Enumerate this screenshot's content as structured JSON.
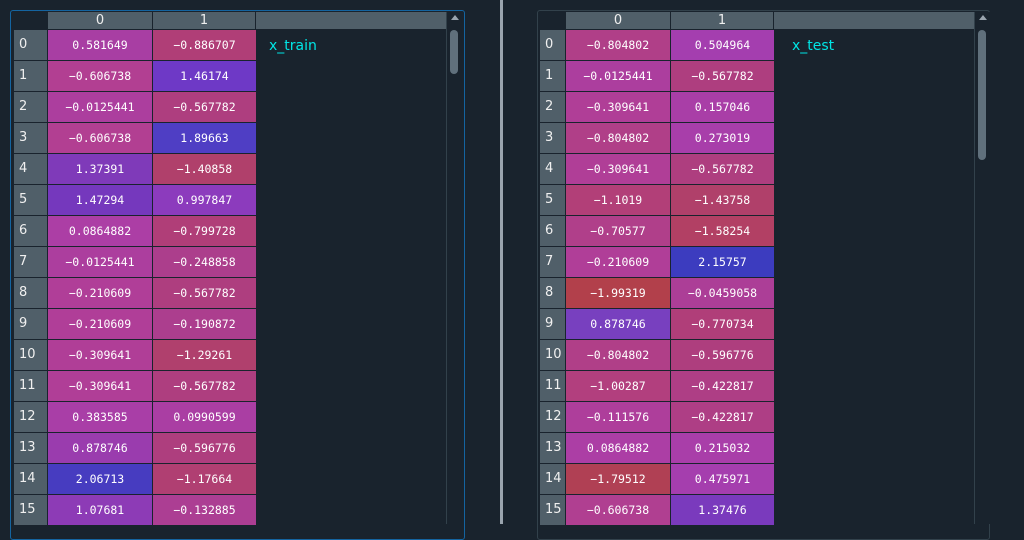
{
  "left": {
    "label": "x_train",
    "columns": [
      "0",
      "1"
    ],
    "rows": [
      {
        "index": "0",
        "c0": "0.581649",
        "c1": "−0.886707",
        "bg0": "#a83ea3",
        "bg1": "#b03e77"
      },
      {
        "index": "1",
        "c0": "−0.606738",
        "c1": "1.46174",
        "bg0": "#b23f92",
        "bg1": "#6e39c6"
      },
      {
        "index": "2",
        "c0": "−0.0125441",
        "c1": "−0.567782",
        "bg0": "#ac3e9e",
        "bg1": "#ae3e7f"
      },
      {
        "index": "3",
        "c0": "−0.606738",
        "c1": "1.89663",
        "bg0": "#b23f92",
        "bg1": "#4f3ec4"
      },
      {
        "index": "4",
        "c0": "1.37391",
        "c1": "−1.40858",
        "bg0": "#7f3ab9",
        "bg1": "#b0406b"
      },
      {
        "index": "5",
        "c0": "1.47294",
        "c1": "0.997847",
        "bg0": "#7538bd",
        "bg1": "#8c3bbd"
      },
      {
        "index": "6",
        "c0": "0.0864882",
        "c1": "−0.799728",
        "bg0": "#ac3ea5",
        "bg1": "#b03e78"
      },
      {
        "index": "7",
        "c0": "−0.0125441",
        "c1": "−0.248858",
        "bg0": "#ac3e9e",
        "bg1": "#ac3e8c"
      },
      {
        "index": "8",
        "c0": "−0.210609",
        "c1": "−0.567782",
        "bg0": "#b03e98",
        "bg1": "#ae3e7f"
      },
      {
        "index": "9",
        "c0": "−0.210609",
        "c1": "−0.190872",
        "bg0": "#b03e98",
        "bg1": "#ac3e8e"
      },
      {
        "index": "10",
        "c0": "−0.309641",
        "c1": "−1.29261",
        "bg0": "#b03e97",
        "bg1": "#b0406d"
      },
      {
        "index": "11",
        "c0": "−0.309641",
        "c1": "−0.567782",
        "bg0": "#b03e97",
        "bg1": "#ae3e7f"
      },
      {
        "index": "12",
        "c0": "0.383585",
        "c1": "0.0990599",
        "bg0": "#a93ea7",
        "bg1": "#aa3ea3"
      },
      {
        "index": "13",
        "c0": "0.878746",
        "c1": "−0.596776",
        "bg0": "#9a3cae",
        "bg1": "#ae3e7e"
      },
      {
        "index": "14",
        "c0": "2.06713",
        "c1": "−1.17664",
        "bg0": "#473cc0",
        "bg1": "#b03f72"
      },
      {
        "index": "15",
        "c0": "1.07681",
        "c1": "−0.132885",
        "bg0": "#8d3bb6",
        "bg1": "#ac3e93"
      }
    ]
  },
  "right": {
    "label": "x_test",
    "columns": [
      "0",
      "1"
    ],
    "rows": [
      {
        "index": "0",
        "c0": "−0.804802",
        "c1": "0.504964",
        "bg0": "#b03f88",
        "bg1": "#a43eaf"
      },
      {
        "index": "1",
        "c0": "−0.0125441",
        "c1": "−0.567782",
        "bg0": "#ac3e9e",
        "bg1": "#ae3e7f"
      },
      {
        "index": "2",
        "c0": "−0.309641",
        "c1": "0.157046",
        "bg0": "#b03e97",
        "bg1": "#a93ea7"
      },
      {
        "index": "3",
        "c0": "−0.804802",
        "c1": "0.273019",
        "bg0": "#b03f88",
        "bg1": "#a83eaa"
      },
      {
        "index": "4",
        "c0": "−0.309641",
        "c1": "−0.567782",
        "bg0": "#b03e97",
        "bg1": "#ae3e7f"
      },
      {
        "index": "5",
        "c0": "−1.1019",
        "c1": "−1.43758",
        "bg0": "#b23f78",
        "bg1": "#b0406a"
      },
      {
        "index": "6",
        "c0": "−0.70577",
        "c1": "−1.58254",
        "bg0": "#b03f8a",
        "bg1": "#b24064"
      },
      {
        "index": "7",
        "c0": "−0.210609",
        "c1": "2.15757",
        "bg0": "#b03e98",
        "bg1": "#3c3cbf"
      },
      {
        "index": "8",
        "c0": "−1.99319",
        "c1": "−0.0459058",
        "bg0": "#b2404b",
        "bg1": "#ac3e97"
      },
      {
        "index": "9",
        "c0": "0.878746",
        "c1": "−0.770734",
        "bg0": "#7840bf",
        "bg1": "#b03e79"
      },
      {
        "index": "10",
        "c0": "−0.804802",
        "c1": "−0.596776",
        "bg0": "#b03f88",
        "bg1": "#ae3e7e"
      },
      {
        "index": "11",
        "c0": "−1.00287",
        "c1": "−0.422817",
        "bg0": "#b23f7e",
        "bg1": "#ae3e85"
      },
      {
        "index": "12",
        "c0": "−0.111576",
        "c1": "−0.422817",
        "bg0": "#ae3e9b",
        "bg1": "#ae3e85"
      },
      {
        "index": "13",
        "c0": "0.0864882",
        "c1": "0.215032",
        "bg0": "#ac3ea5",
        "bg1": "#a93ea9"
      },
      {
        "index": "14",
        "c0": "−1.79512",
        "c1": "0.475971",
        "bg0": "#b04054",
        "bg1": "#a53eae"
      },
      {
        "index": "15",
        "c0": "−0.606738",
        "c1": "1.37476",
        "bg0": "#b03f91",
        "bg1": "#7a3abd"
      }
    ]
  }
}
